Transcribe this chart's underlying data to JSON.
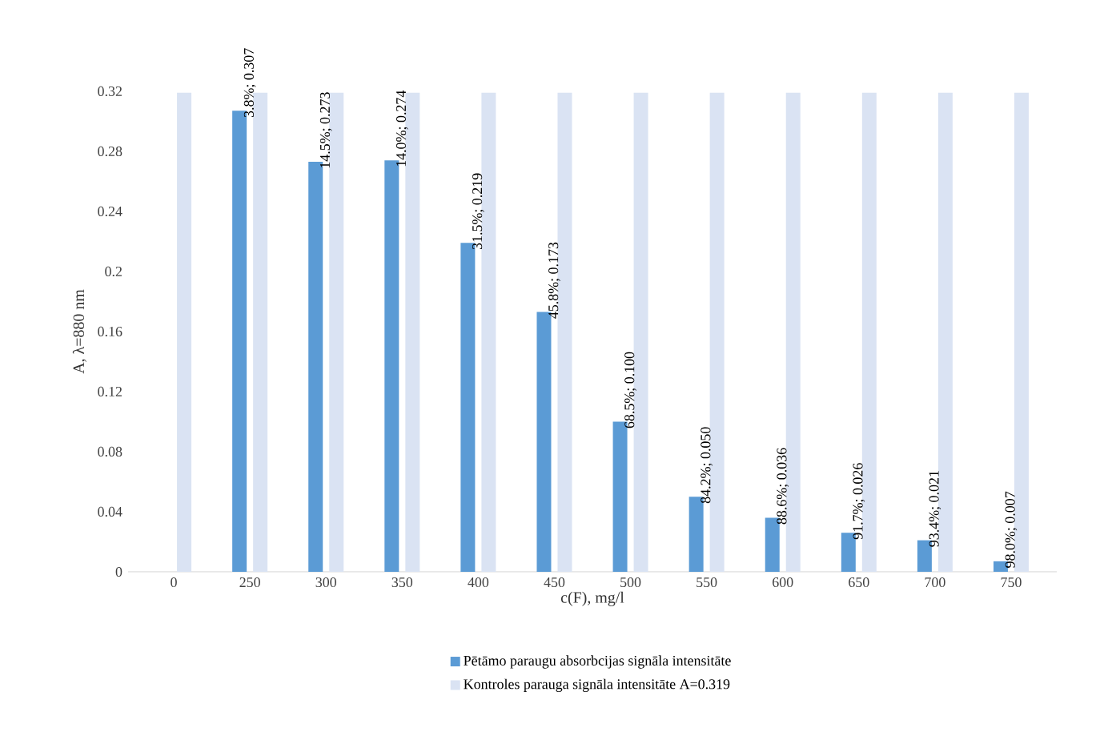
{
  "chart_data": {
    "type": "bar",
    "xlabel": "c(F), mg/l",
    "ylabel": "A, λ=880 nm",
    "categories": [
      "0",
      "250",
      "300",
      "350",
      "400",
      "450",
      "500",
      "550",
      "600",
      "650",
      "700",
      "750"
    ],
    "series": [
      {
        "name": "Pētāmo paraugu absorbcijas signāla intensitāte",
        "color": "#5b9bd5",
        "values": [
          null,
          0.307,
          0.273,
          0.274,
          0.219,
          0.173,
          0.1,
          0.05,
          0.036,
          0.026,
          0.021,
          0.007
        ],
        "value_labels": [
          null,
          "3.8%; 0.307",
          "14.5%; 0.273",
          "14.0%; 0.274",
          "31.5%; 0.219",
          "45.8%; 0.173",
          "68.5%; 0.100",
          "84.2%; 0.050",
          "88.6%; 0.036",
          "91.7%; 0.026",
          "93.4%; 0.021",
          "98.0%; 0.007"
        ]
      },
      {
        "name": "Kontroles parauga signāla intensitāte A=0.319",
        "color": "#dae3f3",
        "values": [
          0.319,
          0.319,
          0.319,
          0.319,
          0.319,
          0.319,
          0.319,
          0.319,
          0.319,
          0.319,
          0.319,
          0.319
        ]
      }
    ],
    "ylim": [
      0,
      0.32
    ],
    "yticks": [
      0,
      0.04,
      0.08,
      0.12,
      0.16,
      0.2,
      0.24,
      0.28,
      0.32
    ],
    "legend": "bottom"
  }
}
